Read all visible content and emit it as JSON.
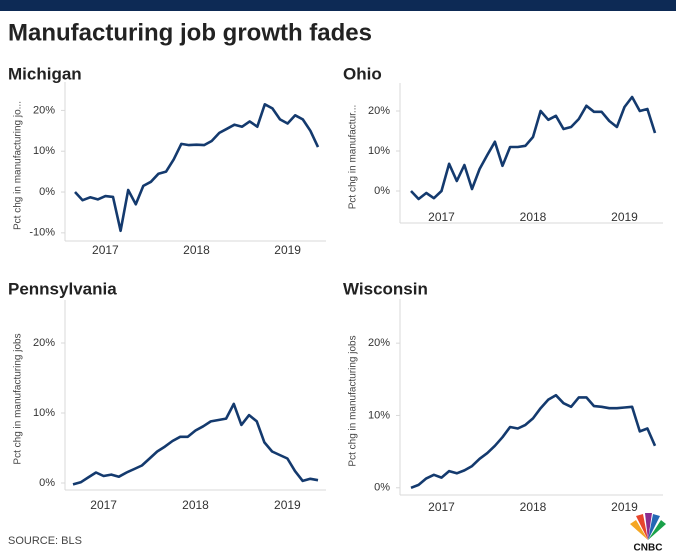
{
  "title": "Manufacturing job growth fades",
  "source": "SOURCE: BLS",
  "logo": "CNBC",
  "chart_data": [
    {
      "type": "line",
      "title": "Michigan",
      "y_label": "Pct chg in manufacturing jo...",
      "color": "#143a6e",
      "categories": [
        null,
        null,
        null,
        null,
        "2017",
        null,
        null,
        null,
        null,
        null,
        null,
        null,
        null,
        null,
        null,
        null,
        "2018",
        null,
        null,
        null,
        null,
        null,
        null,
        null,
        null,
        null,
        null,
        null,
        "2019",
        null,
        null,
        null,
        null
      ],
      "values": [
        0,
        -2,
        -1.3,
        -1.8,
        -1,
        -1.2,
        -9.5,
        0.5,
        -3,
        1.5,
        2.5,
        4.5,
        5,
        8,
        11.8,
        11.5,
        11.6,
        11.5,
        12.5,
        14.5,
        15.5,
        16.5,
        16,
        17.3,
        16,
        21.5,
        20.5,
        17.8,
        16.8,
        18.8,
        17.8,
        15,
        11
      ],
      "ylim": [
        -12,
        25
      ],
      "yticks": [
        {
          "value": -10,
          "label": "-10%"
        },
        {
          "value": 0,
          "label": "0%"
        },
        {
          "value": 10,
          "label": "10%"
        },
        {
          "value": 20,
          "label": "20%"
        }
      ]
    },
    {
      "type": "line",
      "title": "Ohio",
      "y_label": "Pct chg in manufactur...",
      "color": "#143a6e",
      "categories": [
        null,
        null,
        null,
        null,
        "2017",
        null,
        null,
        null,
        null,
        null,
        null,
        null,
        null,
        null,
        null,
        null,
        "2018",
        null,
        null,
        null,
        null,
        null,
        null,
        null,
        null,
        null,
        null,
        null,
        "2019",
        null,
        null,
        null,
        null
      ],
      "values": [
        0,
        -2,
        -0.5,
        -1.8,
        0,
        6.8,
        2.5,
        6.5,
        0.5,
        5.5,
        9,
        12.3,
        6.3,
        11,
        11,
        11.3,
        13.5,
        20,
        17.8,
        18.8,
        15.5,
        16,
        18,
        21.3,
        19.8,
        19.8,
        17.5,
        16,
        21,
        23.5,
        20,
        20.5,
        14.5
      ],
      "ylim": [
        -8,
        25
      ],
      "yticks": [
        {
          "value": 0,
          "label": "0%"
        },
        {
          "value": 10,
          "label": "10%"
        },
        {
          "value": 20,
          "label": "20%"
        }
      ]
    },
    {
      "type": "line",
      "title": "Pennsylvania",
      "y_label": "Pct chg in manufacturing jobs",
      "color": "#143a6e",
      "categories": [
        null,
        null,
        null,
        null,
        "2017",
        null,
        null,
        null,
        null,
        null,
        null,
        null,
        null,
        null,
        null,
        null,
        "2018",
        null,
        null,
        null,
        null,
        null,
        null,
        null,
        null,
        null,
        null,
        null,
        "2019",
        null,
        null,
        null,
        null
      ],
      "values": [
        -0.2,
        0.1,
        0.8,
        1.5,
        1.0,
        1.2,
        0.9,
        1.5,
        2.0,
        2.5,
        3.5,
        4.5,
        5.2,
        6.0,
        6.6,
        6.6,
        7.5,
        8.1,
        8.8,
        9.0,
        9.2,
        11.3,
        8.3,
        9.7,
        8.8,
        5.8,
        4.5,
        4.0,
        3.5,
        1.7,
        0.3,
        0.6,
        0.4
      ],
      "ylim": [
        -1,
        25
      ],
      "yticks": [
        {
          "value": 0,
          "label": "0%"
        },
        {
          "value": 10,
          "label": "10%"
        },
        {
          "value": 20,
          "label": "20%"
        }
      ]
    },
    {
      "type": "line",
      "title": "Wisconsin",
      "y_label": "Pct chg in manufacturing jobs",
      "color": "#143a6e",
      "categories": [
        null,
        null,
        null,
        null,
        "2017",
        null,
        null,
        null,
        null,
        null,
        null,
        null,
        null,
        null,
        null,
        null,
        "2018",
        null,
        null,
        null,
        null,
        null,
        null,
        null,
        null,
        null,
        null,
        null,
        "2019",
        null,
        null,
        null,
        null
      ],
      "values": [
        0,
        0.4,
        1.3,
        1.8,
        1.4,
        2.3,
        2.0,
        2.4,
        3,
        4,
        4.8,
        5.8,
        7,
        8.4,
        8.2,
        8.7,
        9.6,
        11,
        12.2,
        12.8,
        11.7,
        11.2,
        12.5,
        12.5,
        11.3,
        11.2,
        11,
        11,
        11.1,
        11.2,
        7.8,
        8.2,
        5.8
      ],
      "ylim": [
        -1,
        25
      ],
      "yticks": [
        {
          "value": 0,
          "label": "0%"
        },
        {
          "value": 10,
          "label": "10%"
        },
        {
          "value": 20,
          "label": "20%"
        }
      ]
    }
  ]
}
